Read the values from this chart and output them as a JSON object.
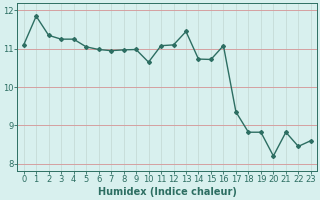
{
  "x": [
    0,
    1,
    2,
    3,
    4,
    5,
    6,
    7,
    8,
    9,
    10,
    11,
    12,
    13,
    14,
    15,
    16,
    17,
    18,
    19,
    20,
    21,
    22,
    23
  ],
  "y": [
    11.1,
    11.85,
    11.35,
    11.25,
    11.25,
    11.05,
    10.98,
    10.95,
    10.97,
    10.98,
    10.65,
    11.08,
    11.1,
    11.45,
    10.73,
    10.72,
    11.08,
    9.35,
    8.82,
    8.82,
    8.2,
    8.82,
    8.45,
    8.6
  ],
  "line_color": "#2d6e62",
  "marker": "D",
  "marker_size": 2,
  "bg_color": "#d8f0ee",
  "grid_color": "#c8deda",
  "grid_red_color": "#d4a0a0",
  "xlabel": "Humidex (Indice chaleur)",
  "xlim": [
    -0.5,
    23.5
  ],
  "ylim": [
    7.8,
    12.2
  ],
  "yticks": [
    8,
    9,
    10,
    11,
    12
  ],
  "xticks": [
    0,
    1,
    2,
    3,
    4,
    5,
    6,
    7,
    8,
    9,
    10,
    11,
    12,
    13,
    14,
    15,
    16,
    17,
    18,
    19,
    20,
    21,
    22,
    23
  ],
  "axis_color": "#2d6e62",
  "tick_fontsize": 6,
  "label_fontsize": 7,
  "linewidth": 1.0
}
